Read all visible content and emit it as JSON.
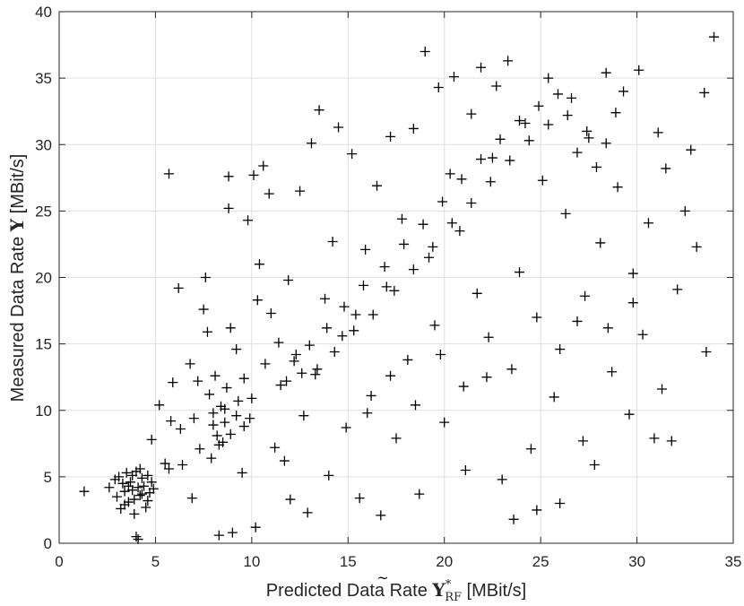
{
  "chart_data": {
    "type": "scatter",
    "title": "",
    "xlabel": {
      "prefix": "Predicted Data Rate ",
      "symbol": "Y",
      "accent": "~",
      "subscript": "RF",
      "superscript": "*",
      "unit": " [MBit/s]"
    },
    "ylabel": {
      "prefix": "Measured Data Rate ",
      "symbol": "Y",
      "unit": " [MBit/s]"
    },
    "xlim": [
      0,
      35
    ],
    "ylim": [
      0,
      40
    ],
    "xticks": [
      0,
      5,
      10,
      15,
      20,
      25,
      30,
      35
    ],
    "yticks": [
      0,
      5,
      10,
      15,
      20,
      25,
      30,
      35,
      40
    ],
    "grid": true,
    "marker": "+",
    "marker_color": "#000000",
    "axis_color": "#262626",
    "grid_color": "#dfdfdf",
    "series": [
      {
        "points": [
          [
            1.3,
            3.9
          ],
          [
            2.6,
            4.2
          ],
          [
            2.9,
            4.8
          ],
          [
            3.0,
            3.5
          ],
          [
            3.1,
            5.0
          ],
          [
            3.2,
            2.6
          ],
          [
            3.3,
            4.5
          ],
          [
            3.4,
            3.9
          ],
          [
            3.5,
            5.3
          ],
          [
            3.6,
            3.1
          ],
          [
            3.7,
            4.6
          ],
          [
            3.8,
            4.0
          ],
          [
            3.9,
            2.2
          ],
          [
            4.0,
            5.4
          ],
          [
            4.0,
            0.5
          ],
          [
            4.1,
            0.3
          ],
          [
            4.2,
            3.6
          ],
          [
            4.3,
            4.9
          ],
          [
            4.4,
            4.3
          ],
          [
            4.5,
            2.7
          ],
          [
            4.6,
            5.1
          ],
          [
            4.7,
            3.8
          ],
          [
            4.8,
            4.6
          ],
          [
            4.9,
            4.1
          ],
          [
            3.9,
            3.3
          ],
          [
            4.1,
            4.2
          ],
          [
            4.3,
            3.7
          ],
          [
            3.6,
            4.3
          ],
          [
            4.6,
            3.2
          ],
          [
            3.4,
            2.9
          ],
          [
            4.2,
            5.6
          ],
          [
            3.8,
            5.1
          ],
          [
            4.8,
            7.8
          ],
          [
            5.2,
            10.4
          ],
          [
            5.5,
            6.0
          ],
          [
            5.7,
            5.6
          ],
          [
            5.7,
            27.8
          ],
          [
            5.9,
            12.1
          ],
          [
            5.8,
            9.2
          ],
          [
            6.2,
            19.2
          ],
          [
            6.3,
            8.6
          ],
          [
            6.4,
            5.9
          ],
          [
            6.8,
            13.5
          ],
          [
            6.9,
            3.4
          ],
          [
            7.0,
            9.4
          ],
          [
            7.2,
            12.2
          ],
          [
            7.3,
            7.1
          ],
          [
            7.5,
            17.6
          ],
          [
            7.6,
            20.0
          ],
          [
            7.7,
            15.9
          ],
          [
            7.8,
            11.2
          ],
          [
            7.9,
            6.4
          ],
          [
            8.0,
            9.8
          ],
          [
            8.1,
            12.6
          ],
          [
            8.2,
            8.1
          ],
          [
            8.3,
            0.6
          ],
          [
            8.4,
            10.3
          ],
          [
            8.5,
            7.6
          ],
          [
            8.6,
            9.1
          ],
          [
            8.7,
            11.7
          ],
          [
            8.8,
            27.6
          ],
          [
            8.8,
            25.2
          ],
          [
            8.9,
            16.2
          ],
          [
            9.0,
            0.8
          ],
          [
            9.2,
            14.6
          ],
          [
            9.3,
            10.7
          ],
          [
            9.5,
            5.3
          ],
          [
            9.6,
            12.4
          ],
          [
            9.8,
            24.3
          ],
          [
            9.9,
            9.4
          ],
          [
            10.1,
            27.7
          ],
          [
            10.2,
            1.2
          ],
          [
            10.3,
            18.3
          ],
          [
            10.4,
            21.0
          ],
          [
            10.6,
            28.4
          ],
          [
            10.7,
            13.5
          ],
          [
            10.9,
            26.3
          ],
          [
            11.0,
            17.3
          ],
          [
            11.2,
            7.2
          ],
          [
            11.4,
            15.1
          ],
          [
            11.5,
            11.9
          ],
          [
            11.7,
            6.2
          ],
          [
            11.9,
            19.8
          ],
          [
            12.0,
            3.3
          ],
          [
            12.3,
            14.2
          ],
          [
            12.5,
            26.5
          ],
          [
            12.7,
            9.6
          ],
          [
            12.9,
            2.3
          ],
          [
            13.1,
            30.1
          ],
          [
            13.3,
            12.7
          ],
          [
            13.5,
            32.6
          ],
          [
            13.8,
            18.4
          ],
          [
            14.0,
            5.1
          ],
          [
            14.2,
            22.7
          ],
          [
            14.5,
            31.3
          ],
          [
            14.7,
            15.6
          ],
          [
            14.9,
            8.7
          ],
          [
            15.2,
            29.3
          ],
          [
            15.4,
            17.2
          ],
          [
            15.6,
            3.4
          ],
          [
            15.9,
            22.1
          ],
          [
            16.2,
            11.1
          ],
          [
            16.5,
            26.9
          ],
          [
            16.7,
            2.1
          ],
          [
            17.0,
            19.3
          ],
          [
            17.2,
            30.6
          ],
          [
            17.5,
            7.9
          ],
          [
            17.8,
            24.4
          ],
          [
            18.1,
            13.8
          ],
          [
            18.4,
            31.2
          ],
          [
            18.7,
            3.7
          ],
          [
            19.0,
            37.0
          ],
          [
            19.2,
            21.5
          ],
          [
            19.5,
            16.4
          ],
          [
            19.7,
            34.3
          ],
          [
            20.0,
            9.1
          ],
          [
            20.3,
            27.8
          ],
          [
            20.5,
            35.1
          ],
          [
            20.8,
            23.5
          ],
          [
            21.1,
            5.5
          ],
          [
            21.4,
            32.3
          ],
          [
            21.7,
            18.8
          ],
          [
            21.9,
            35.8
          ],
          [
            22.2,
            12.5
          ],
          [
            22.5,
            29.0
          ],
          [
            22.7,
            34.4
          ],
          [
            23.0,
            4.8
          ],
          [
            23.3,
            36.3
          ],
          [
            23.6,
            1.8
          ],
          [
            23.9,
            20.4
          ],
          [
            24.2,
            31.6
          ],
          [
            24.5,
            7.1
          ],
          [
            24.8,
            2.5
          ],
          [
            25.1,
            27.3
          ],
          [
            25.4,
            35.0
          ],
          [
            25.7,
            11.0
          ],
          [
            26.0,
            3.0
          ],
          [
            26.3,
            24.8
          ],
          [
            26.6,
            33.5
          ],
          [
            26.9,
            16.7
          ],
          [
            27.2,
            7.7
          ],
          [
            27.5,
            30.5
          ],
          [
            27.8,
            5.9
          ],
          [
            28.1,
            22.6
          ],
          [
            28.4,
            35.4
          ],
          [
            28.7,
            12.9
          ],
          [
            29.0,
            26.8
          ],
          [
            29.3,
            34.0
          ],
          [
            29.6,
            9.7
          ],
          [
            29.8,
            18.1
          ],
          [
            30.1,
            35.6
          ],
          [
            30.3,
            15.7
          ],
          [
            30.6,
            24.1
          ],
          [
            30.9,
            7.9
          ],
          [
            31.1,
            30.9
          ],
          [
            31.3,
            11.6
          ],
          [
            31.5,
            28.2
          ],
          [
            31.8,
            7.7
          ],
          [
            32.1,
            19.1
          ],
          [
            32.5,
            25.0
          ],
          [
            32.8,
            29.6
          ],
          [
            33.1,
            22.3
          ],
          [
            33.5,
            33.9
          ],
          [
            33.6,
            14.4
          ],
          [
            34.0,
            38.1
          ],
          [
            8.0,
            8.9
          ],
          [
            8.3,
            7.4
          ],
          [
            8.6,
            10.1
          ],
          [
            8.9,
            8.2
          ],
          [
            9.2,
            9.6
          ],
          [
            9.6,
            8.8
          ],
          [
            10.0,
            10.9
          ],
          [
            11.8,
            12.2
          ],
          [
            12.2,
            13.7
          ],
          [
            12.6,
            12.8
          ],
          [
            13.0,
            14.9
          ],
          [
            13.4,
            13.1
          ],
          [
            13.9,
            16.2
          ],
          [
            14.3,
            14.4
          ],
          [
            14.8,
            17.8
          ],
          [
            15.3,
            16.0
          ],
          [
            15.8,
            19.4
          ],
          [
            16.3,
            17.2
          ],
          [
            16.9,
            20.8
          ],
          [
            17.4,
            19.0
          ],
          [
            17.9,
            22.5
          ],
          [
            18.4,
            20.6
          ],
          [
            18.9,
            24.0
          ],
          [
            19.4,
            22.3
          ],
          [
            19.9,
            25.7
          ],
          [
            20.4,
            24.1
          ],
          [
            20.9,
            27.4
          ],
          [
            21.4,
            25.6
          ],
          [
            21.9,
            28.9
          ],
          [
            22.4,
            27.2
          ],
          [
            22.9,
            30.4
          ],
          [
            23.4,
            28.8
          ],
          [
            23.9,
            31.8
          ],
          [
            24.4,
            30.3
          ],
          [
            24.9,
            32.9
          ],
          [
            25.4,
            31.5
          ],
          [
            25.9,
            33.8
          ],
          [
            26.4,
            32.2
          ],
          [
            26.9,
            29.4
          ],
          [
            27.4,
            31.0
          ],
          [
            27.9,
            28.3
          ],
          [
            28.4,
            30.1
          ],
          [
            28.9,
            32.4
          ],
          [
            16.0,
            9.8
          ],
          [
            17.2,
            12.6
          ],
          [
            18.5,
            10.4
          ],
          [
            19.8,
            14.2
          ],
          [
            21.0,
            11.8
          ],
          [
            22.3,
            15.5
          ],
          [
            23.5,
            13.1
          ],
          [
            24.8,
            17.0
          ],
          [
            26.0,
            14.6
          ],
          [
            27.3,
            18.6
          ],
          [
            28.5,
            16.2
          ],
          [
            29.8,
            20.3
          ]
        ]
      }
    ]
  }
}
